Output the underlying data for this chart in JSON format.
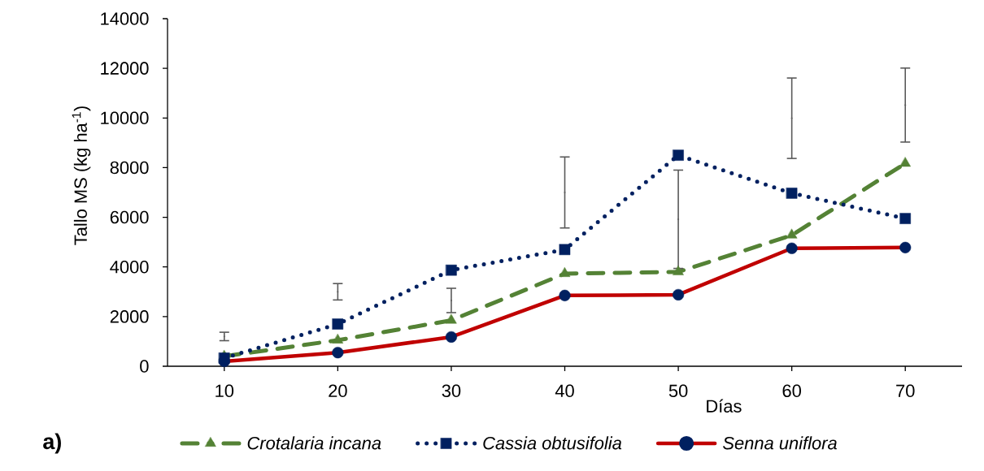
{
  "chart_data": {
    "type": "line",
    "xlabel": "Días",
    "ylabel": "Tallo MS (kg ha$^{-1}$)",
    "annotations": [
      "a)"
    ],
    "categories": [
      "10",
      "20",
      "30",
      "40",
      "50",
      "60",
      "70"
    ],
    "ylim": [
      0,
      14000
    ],
    "yticks": [
      0,
      2000,
      4000,
      6000,
      8000,
      10000,
      12000,
      14000
    ],
    "legend": "bottom",
    "series": [
      {
        "name": "Crotalaria incana",
        "type": "line",
        "color": "#548235",
        "marker": "triangle",
        "line_style": "dashed",
        "values": [
          400,
          1050,
          1850,
          3730,
          3800,
          5280,
          8170
        ]
      },
      {
        "name": "Cassia obtusifolia",
        "type": "line",
        "color": "#002060",
        "marker": "square",
        "line_style": "dotted",
        "values": [
          330,
          1700,
          3870,
          4700,
          8500,
          6970,
          5950
        ]
      },
      {
        "name": "Senna uniflora",
        "type": "line",
        "color": "#c00000",
        "colors": [
          "#002060",
          "#002060",
          "#002060",
          "#002060",
          "#002060",
          "#002060",
          "#002060"
        ],
        "marker": "circle",
        "line_style": "solid",
        "values": [
          200,
          550,
          1180,
          2850,
          2880,
          4750,
          4780
        ]
      },
      {
        "type": "scatter",
        "color": "#595959",
        "marker": "none",
        "values": [
          1200,
          3000,
          2650,
          7000,
          5920,
          9990,
          10520
        ],
        "errors": [
          170,
          330,
          490,
          1430,
          1980,
          1620,
          1490
        ]
      }
    ]
  }
}
